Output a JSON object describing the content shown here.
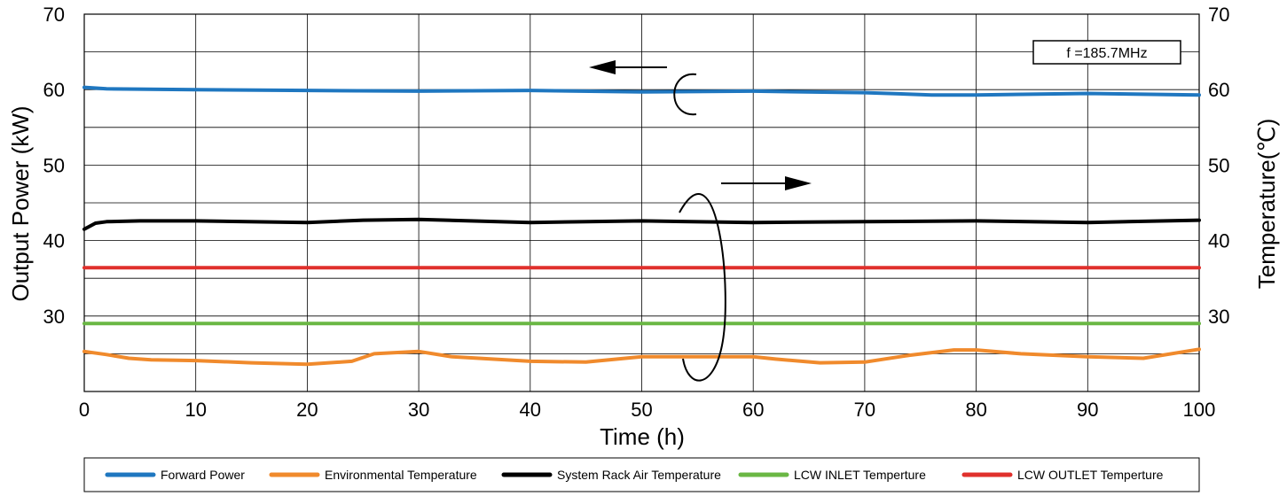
{
  "chart_data": {
    "type": "line",
    "xlabel": "Time (h)",
    "ylabel_left": "Output Power (kW)",
    "ylabel_right": "Temperature(℃)",
    "xlim": [
      0,
      100
    ],
    "ylim": [
      20,
      70
    ],
    "x_ticks": [
      0,
      10,
      20,
      30,
      40,
      50,
      60,
      70,
      80,
      90,
      100
    ],
    "y_ticks": [
      30,
      40,
      50,
      60,
      70
    ],
    "grid": true,
    "legend_position": "bottom",
    "annotation": "f =185.7MHz",
    "series": [
      {
        "name": "Forward Power",
        "color": "#1f77c0",
        "axis": "left",
        "x": [
          0,
          2,
          10,
          20,
          30,
          40,
          50,
          60,
          70,
          76,
          80,
          90,
          100
        ],
        "y": [
          60.3,
          60.1,
          60.0,
          59.9,
          59.8,
          59.9,
          59.7,
          59.8,
          59.6,
          59.3,
          59.3,
          59.5,
          59.3
        ]
      },
      {
        "name": "Environmental Temperature",
        "color": "#f08a2c",
        "axis": "right",
        "x": [
          0,
          2,
          4,
          6,
          10,
          15,
          20,
          24,
          26,
          30,
          33,
          40,
          45,
          50,
          60,
          62,
          66,
          70,
          74,
          78,
          80,
          84,
          90,
          95,
          100
        ],
        "y": [
          25.3,
          24.9,
          24.4,
          24.2,
          24.1,
          23.8,
          23.6,
          24.0,
          25.0,
          25.3,
          24.6,
          24.0,
          23.9,
          24.6,
          24.6,
          24.3,
          23.8,
          23.9,
          24.8,
          25.5,
          25.5,
          25.0,
          24.6,
          24.4,
          25.6
        ]
      },
      {
        "name": "System Rack Air Temperature",
        "color": "#000000",
        "axis": "right",
        "x": [
          0,
          1,
          2,
          5,
          10,
          20,
          25,
          30,
          40,
          50,
          60,
          70,
          80,
          90,
          100
        ],
        "y": [
          41.5,
          42.3,
          42.5,
          42.6,
          42.6,
          42.4,
          42.7,
          42.8,
          42.4,
          42.6,
          42.4,
          42.5,
          42.6,
          42.4,
          42.7
        ]
      },
      {
        "name": "LCW INLET Temperture",
        "color": "#6ab744",
        "axis": "right",
        "x": [
          0,
          100
        ],
        "y": [
          29.0,
          29.0
        ]
      },
      {
        "name": "LCW OUTLET Temperture",
        "color": "#e0302c",
        "axis": "right",
        "x": [
          0,
          100
        ],
        "y": [
          36.4,
          36.4
        ]
      }
    ]
  }
}
